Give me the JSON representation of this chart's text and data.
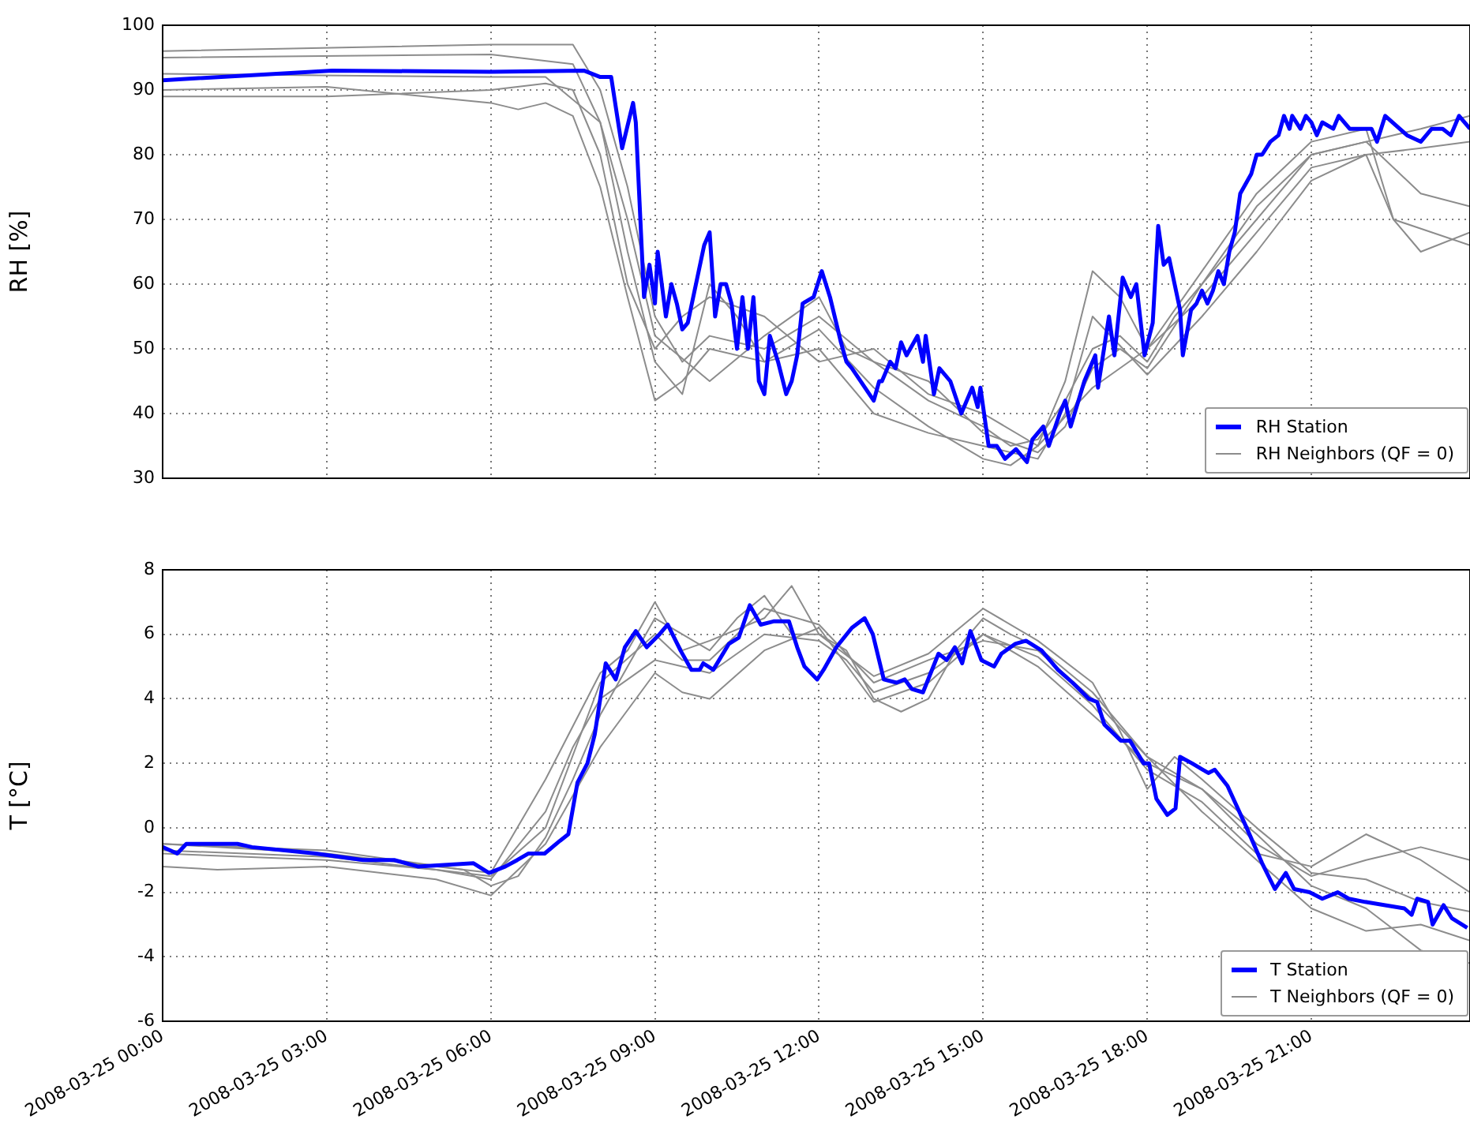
{
  "chart_data": [
    {
      "type": "line",
      "ylabel": "RH [%]",
      "xlim": [
        "2008-03-25T00:00",
        "2008-03-25T23:54"
      ],
      "ylim": [
        30,
        100
      ],
      "yticks": [
        30,
        40,
        50,
        60,
        70,
        80,
        90,
        100
      ],
      "xticks": [
        {
          "value": "2008-03-25T00:00",
          "label": null
        },
        {
          "value": "2008-03-25T03:00",
          "label": null
        },
        {
          "value": "2008-03-25T06:00",
          "label": null
        },
        {
          "value": "2008-03-25T09:00",
          "label": null
        },
        {
          "value": "2008-03-25T12:00",
          "label": null
        },
        {
          "value": "2008-03-25T15:00",
          "label": null
        },
        {
          "value": "2008-03-25T18:00",
          "label": null
        },
        {
          "value": "2008-03-25T21:00",
          "label": null
        }
      ],
      "tick_labels": "y",
      "grid": true,
      "legend": "bottom right",
      "series": [
        {
          "name": "RH Station",
          "color": "#0000ff",
          "x": [
            "2008-03-25T00:00",
            "2008-03-25T03:06",
            "2008-03-25T06:00",
            "2008-03-25T07:42",
            "2008-03-25T08:00",
            "2008-03-25T08:12",
            "2008-03-25T08:24",
            "2008-03-25T08:36",
            "2008-03-25T08:39",
            "2008-03-25T08:48",
            "2008-03-25T08:54",
            "2008-03-25T09:00",
            "2008-03-25T09:03",
            "2008-03-25T09:12",
            "2008-03-25T09:18",
            "2008-03-25T09:24",
            "2008-03-25T09:30",
            "2008-03-25T09:36",
            "2008-03-25T09:48",
            "2008-03-25T09:54",
            "2008-03-25T10:00",
            "2008-03-25T10:06",
            "2008-03-25T10:12",
            "2008-03-25T10:18",
            "2008-03-25T10:24",
            "2008-03-25T10:30",
            "2008-03-25T10:36",
            "2008-03-25T10:42",
            "2008-03-25T10:48",
            "2008-03-25T10:54",
            "2008-03-25T11:00",
            "2008-03-25T11:06",
            "2008-03-25T11:15",
            "2008-03-25T11:24",
            "2008-03-25T11:30",
            "2008-03-25T11:36",
            "2008-03-25T11:42",
            "2008-03-25T11:54",
            "2008-03-25T12:03",
            "2008-03-25T12:12",
            "2008-03-25T12:24",
            "2008-03-25T12:30",
            "2008-03-25T12:36",
            "2008-03-25T13:00",
            "2008-03-25T13:06",
            "2008-03-25T13:09",
            "2008-03-25T13:18",
            "2008-03-25T13:24",
            "2008-03-25T13:30",
            "2008-03-25T13:36",
            "2008-03-25T13:48",
            "2008-03-25T13:54",
            "2008-03-25T13:57",
            "2008-03-25T14:06",
            "2008-03-25T14:12",
            "2008-03-25T14:24",
            "2008-03-25T14:36",
            "2008-03-25T14:48",
            "2008-03-25T14:54",
            "2008-03-25T14:57",
            "2008-03-25T15:06",
            "2008-03-25T15:15",
            "2008-03-25T15:24",
            "2008-03-25T15:36",
            "2008-03-25T15:48",
            "2008-03-25T15:54",
            "2008-03-25T16:06",
            "2008-03-25T16:12",
            "2008-03-25T16:24",
            "2008-03-25T16:30",
            "2008-03-25T16:36",
            "2008-03-25T16:51",
            "2008-03-25T17:03",
            "2008-03-25T17:06",
            "2008-03-25T17:18",
            "2008-03-25T17:24",
            "2008-03-25T17:33",
            "2008-03-25T17:42",
            "2008-03-25T17:48",
            "2008-03-25T17:57",
            "2008-03-25T18:06",
            "2008-03-25T18:12",
            "2008-03-25T18:18",
            "2008-03-25T18:24",
            "2008-03-25T18:36",
            "2008-03-25T18:39",
            "2008-03-25T18:48",
            "2008-03-25T18:54",
            "2008-03-25T19:00",
            "2008-03-25T19:06",
            "2008-03-25T19:12",
            "2008-03-25T19:18",
            "2008-03-25T19:24",
            "2008-03-25T19:30",
            "2008-03-25T19:36",
            "2008-03-25T19:42",
            "2008-03-25T19:54",
            "2008-03-25T20:00",
            "2008-03-25T20:06",
            "2008-03-25T20:15",
            "2008-03-25T20:24",
            "2008-03-25T20:30",
            "2008-03-25T20:36",
            "2008-03-25T20:39",
            "2008-03-25T20:48",
            "2008-03-25T20:54",
            "2008-03-25T21:00",
            "2008-03-25T21:06",
            "2008-03-25T21:12",
            "2008-03-25T21:24",
            "2008-03-25T21:30",
            "2008-03-25T21:42",
            "2008-03-25T22:06",
            "2008-03-25T22:12",
            "2008-03-25T22:21",
            "2008-03-25T22:45",
            "2008-03-25T23:00",
            "2008-03-25T23:12",
            "2008-03-25T23:24",
            "2008-03-25T23:33",
            "2008-03-25T23:42",
            "2008-03-25T23:54"
          ],
          "values": [
            91.5,
            93,
            92.8,
            93,
            92,
            92,
            81,
            88,
            85,
            58,
            63,
            57,
            65,
            55,
            60,
            57,
            53,
            54,
            62,
            66,
            68,
            55,
            60,
            60,
            57,
            50,
            58,
            50,
            58,
            45,
            43,
            52,
            48,
            43,
            45,
            49,
            57,
            58,
            62,
            58,
            51,
            48,
            47,
            42,
            45,
            45,
            48,
            47,
            51,
            49,
            52,
            48,
            52,
            43,
            47,
            45,
            40,
            44,
            41,
            44,
            35,
            35,
            33,
            34.5,
            32.5,
            36,
            38,
            35,
            40,
            42,
            38,
            45,
            49,
            44,
            55,
            49,
            61,
            58,
            60,
            49,
            54,
            69,
            63,
            64,
            56,
            49,
            56,
            57,
            59,
            57,
            59,
            62,
            60,
            65,
            68,
            74,
            77,
            80,
            80,
            82,
            83,
            86,
            84,
            86,
            84,
            86,
            85,
            83,
            85,
            84,
            86,
            84,
            84,
            82,
            86,
            83,
            82,
            84,
            84,
            83,
            86,
            84
          ]
        },
        {
          "name": "RH Neighbors (QF = 0)",
          "color": "#8c8c8c",
          "x": [
            "2008-03-25T00:00",
            "2008-03-25T06:00",
            "2008-03-25T07:30",
            "2008-03-25T08:00",
            "2008-03-25T08:30",
            "2008-03-25T09:00",
            "2008-03-25T09:30",
            "2008-03-25T10:00",
            "2008-03-25T11:00",
            "2008-03-25T12:00",
            "2008-03-25T13:00",
            "2008-03-25T14:00",
            "2008-03-25T15:00",
            "2008-03-25T15:30",
            "2008-03-25T16:00",
            "2008-03-25T16:30",
            "2008-03-25T17:00",
            "2008-03-25T17:30",
            "2008-03-25T18:00",
            "2008-03-25T18:30",
            "2008-03-25T19:00",
            "2008-03-25T20:00",
            "2008-03-25T21:00",
            "2008-03-25T22:00",
            "2008-03-25T23:00",
            "2008-03-25T23:54"
          ],
          "values": [
            96,
            97,
            97,
            90,
            75,
            55,
            48,
            52,
            50,
            55,
            48,
            42,
            38,
            35,
            36,
            42,
            50,
            52,
            48,
            55,
            60,
            70,
            80,
            82,
            84,
            86
          ]
        },
        {
          "color": "#8c8c8c",
          "x": [
            "2008-03-25T00:00",
            "2008-03-25T06:00",
            "2008-03-25T07:30",
            "2008-03-25T08:00",
            "2008-03-25T08:30",
            "2008-03-25T09:00",
            "2008-03-25T09:30",
            "2008-03-25T10:00",
            "2008-03-25T10:30",
            "2008-03-25T11:00",
            "2008-03-25T12:00",
            "2008-03-25T13:00",
            "2008-03-25T14:00",
            "2008-03-25T15:00",
            "2008-03-25T15:30",
            "2008-03-25T16:00",
            "2008-03-25T16:30",
            "2008-03-25T17:00",
            "2008-03-25T17:30",
            "2008-03-25T18:00",
            "2008-03-25T19:00",
            "2008-03-25T20:00",
            "2008-03-25T21:00",
            "2008-03-25T22:00",
            "2008-03-25T22:30",
            "2008-03-25T23:00",
            "2008-03-25T23:54"
          ],
          "values": [
            95,
            95.5,
            94,
            85,
            65,
            48,
            43,
            60,
            55,
            48,
            53,
            44,
            38,
            33,
            32,
            35,
            45,
            62,
            58,
            50,
            58,
            68,
            78,
            80,
            70,
            65,
            68
          ]
        },
        {
          "color": "#8c8c8c",
          "x": [
            "2008-03-25T00:00",
            "2008-03-25T06:00",
            "2008-03-25T07:00",
            "2008-03-25T08:00",
            "2008-03-25T08:30",
            "2008-03-25T09:00",
            "2008-03-25T10:00",
            "2008-03-25T11:00",
            "2008-03-25T12:00",
            "2008-03-25T12:30",
            "2008-03-25T13:00",
            "2008-03-25T14:00",
            "2008-03-25T15:00",
            "2008-03-25T16:00",
            "2008-03-25T16:30",
            "2008-03-25T17:00",
            "2008-03-25T17:30",
            "2008-03-25T18:00",
            "2008-03-25T19:00",
            "2008-03-25T20:00",
            "2008-03-25T21:00",
            "2008-03-25T22:00",
            "2008-03-25T23:00",
            "2008-03-25T23:54"
          ],
          "values": [
            92.5,
            92,
            92,
            85,
            70,
            52,
            45,
            52,
            58,
            50,
            48,
            45,
            37,
            34,
            38,
            47,
            50,
            47,
            60,
            72,
            80,
            82,
            74,
            72
          ]
        },
        {
          "color": "#8c8c8c",
          "x": [
            "2008-03-25T00:00",
            "2008-03-25T03:00",
            "2008-03-25T06:00",
            "2008-03-25T06:30",
            "2008-03-25T07:00",
            "2008-03-25T07:30",
            "2008-03-25T08:00",
            "2008-03-25T08:30",
            "2008-03-25T09:00",
            "2008-03-25T09:30",
            "2008-03-25T10:00",
            "2008-03-25T11:00",
            "2008-03-25T12:00",
            "2008-03-25T13:00",
            "2008-03-25T14:00",
            "2008-03-25T15:00",
            "2008-03-25T16:00",
            "2008-03-25T16:30",
            "2008-03-25T17:00",
            "2008-03-25T18:00",
            "2008-03-25T19:00",
            "2008-03-25T20:00",
            "2008-03-25T21:00",
            "2008-03-25T22:00",
            "2008-03-25T23:00",
            "2008-03-25T23:54"
          ],
          "values": [
            90,
            90.5,
            88,
            87,
            88,
            86,
            75,
            58,
            42,
            45,
            50,
            48,
            50,
            40,
            37,
            35,
            33,
            40,
            55,
            46,
            55,
            65,
            76,
            80,
            81,
            82
          ]
        },
        {
          "color": "#8c8c8c",
          "x": [
            "2008-03-25T00:00",
            "2008-03-25T03:00",
            "2008-03-25T06:00",
            "2008-03-25T07:00",
            "2008-03-25T07:30",
            "2008-03-25T08:00",
            "2008-03-25T08:30",
            "2008-03-25T09:00",
            "2008-03-25T09:30",
            "2008-03-25T10:00",
            "2008-03-25T11:00",
            "2008-03-25T12:00",
            "2008-03-25T13:00",
            "2008-03-25T14:00",
            "2008-03-25T15:00",
            "2008-03-25T16:00",
            "2008-03-25T17:00",
            "2008-03-25T18:00",
            "2008-03-25T19:00",
            "2008-03-25T20:00",
            "2008-03-25T21:00",
            "2008-03-25T22:00",
            "2008-03-25T22:30",
            "2008-03-25T23:54"
          ],
          "values": [
            89,
            89,
            90,
            91,
            90,
            80,
            60,
            50,
            55,
            58,
            55,
            48,
            50,
            43,
            40,
            35,
            44,
            50,
            62,
            74,
            82,
            84,
            70,
            66
          ]
        }
      ]
    },
    {
      "type": "line",
      "ylabel": "T [°C]",
      "xlim": [
        "2008-03-25T00:00",
        "2008-03-25T23:54"
      ],
      "ylim": [
        -6,
        8
      ],
      "yticks": [
        -6,
        -4,
        -2,
        0,
        2,
        4,
        6,
        8
      ],
      "xticks": [
        {
          "value": "2008-03-25T00:00",
          "label": "2008-03-25 00:00"
        },
        {
          "value": "2008-03-25T03:00",
          "label": "2008-03-25 03:00"
        },
        {
          "value": "2008-03-25T06:00",
          "label": "2008-03-25 06:00"
        },
        {
          "value": "2008-03-25T09:00",
          "label": "2008-03-25 09:00"
        },
        {
          "value": "2008-03-25T12:00",
          "label": "2008-03-25 12:00"
        },
        {
          "value": "2008-03-25T15:00",
          "label": "2008-03-25 15:00"
        },
        {
          "value": "2008-03-25T18:00",
          "label": "2008-03-25 18:00"
        },
        {
          "value": "2008-03-25T21:00",
          "label": "2008-03-25 21:00"
        }
      ],
      "grid": true,
      "legend": "bottom right",
      "series": [
        {
          "name": "T Station",
          "color": "#0000ff",
          "x": [
            "2008-03-25T00:00",
            "2008-03-25T00:16",
            "2008-03-25T00:26",
            "2008-03-25T01:22",
            "2008-03-25T01:38",
            "2008-03-25T02:48",
            "2008-03-25T03:40",
            "2008-03-25T04:14",
            "2008-03-25T04:40",
            "2008-03-25T05:41",
            "2008-03-25T05:58",
            "2008-03-25T06:16",
            "2008-03-25T06:29",
            "2008-03-25T06:41",
            "2008-03-25T06:59",
            "2008-03-25T07:16",
            "2008-03-25T07:25",
            "2008-03-25T07:35",
            "2008-03-25T07:46",
            "2008-03-25T07:54",
            "2008-03-25T08:06",
            "2008-03-25T08:17",
            "2008-03-25T08:27",
            "2008-03-25T08:39",
            "2008-03-25T08:51",
            "2008-03-25T09:05",
            "2008-03-25T09:14",
            "2008-03-25T09:28",
            "2008-03-25T09:40",
            "2008-03-25T09:49",
            "2008-03-25T09:53",
            "2008-03-25T10:04",
            "2008-03-25T10:21",
            "2008-03-25T10:32",
            "2008-03-25T10:44",
            "2008-03-25T10:56",
            "2008-03-25T11:10",
            "2008-03-25T11:27",
            "2008-03-25T11:36",
            "2008-03-25T11:44",
            "2008-03-25T11:58",
            "2008-03-25T12:05",
            "2008-03-25T12:19",
            "2008-03-25T12:36",
            "2008-03-25T12:50",
            "2008-03-25T12:59",
            "2008-03-25T13:11",
            "2008-03-25T13:25",
            "2008-03-25T13:34",
            "2008-03-25T13:42",
            "2008-03-25T13:54",
            "2008-03-25T14:11",
            "2008-03-25T14:20",
            "2008-03-25T14:29",
            "2008-03-25T14:37",
            "2008-03-25T14:46",
            "2008-03-25T14:58",
            "2008-03-25T15:12",
            "2008-03-25T15:20",
            "2008-03-25T15:35",
            "2008-03-25T15:47",
            "2008-03-25T16:04",
            "2008-03-25T16:22",
            "2008-03-25T16:38",
            "2008-03-25T16:56",
            "2008-03-25T17:05",
            "2008-03-25T17:13",
            "2008-03-25T17:31",
            "2008-03-25T17:41",
            "2008-03-25T17:56",
            "2008-03-25T18:02",
            "2008-03-25T18:10",
            "2008-03-25T18:22",
            "2008-03-25T18:31",
            "2008-03-25T18:36",
            "2008-03-25T18:49",
            "2008-03-25T19:01",
            "2008-03-25T19:07",
            "2008-03-25T19:14",
            "2008-03-25T19:28",
            "2008-03-25T19:49",
            "2008-03-25T20:06",
            "2008-03-25T20:20",
            "2008-03-25T20:32",
            "2008-03-25T20:41",
            "2008-03-25T20:58",
            "2008-03-25T21:12",
            "2008-03-25T21:29",
            "2008-03-25T21:41",
            "2008-03-25T21:59",
            "2008-03-25T22:21",
            "2008-03-25T22:42",
            "2008-03-25T22:50",
            "2008-03-25T22:56",
            "2008-03-25T23:08",
            "2008-03-25T23:13",
            "2008-03-25T23:25",
            "2008-03-25T23:34",
            "2008-03-25T23:51"
          ],
          "values": [
            -0.6,
            -0.8,
            -0.5,
            -0.5,
            -0.6,
            -0.8,
            -1.0,
            -1.0,
            -1.2,
            -1.1,
            -1.4,
            -1.2,
            -1.0,
            -0.8,
            -0.8,
            -0.4,
            -0.2,
            1.4,
            2.0,
            2.9,
            5.1,
            4.6,
            5.6,
            6.1,
            5.6,
            6.0,
            6.3,
            5.5,
            4.9,
            4.9,
            5.1,
            4.9,
            5.7,
            5.9,
            6.9,
            6.3,
            6.4,
            6.4,
            5.6,
            5.0,
            4.6,
            4.9,
            5.6,
            6.2,
            6.5,
            6.0,
            4.6,
            4.5,
            4.6,
            4.3,
            4.2,
            5.4,
            5.2,
            5.6,
            5.1,
            6.1,
            5.2,
            5.0,
            5.4,
            5.7,
            5.8,
            5.5,
            4.9,
            4.5,
            4.0,
            3.9,
            3.2,
            2.7,
            2.7,
            2.0,
            2.0,
            0.9,
            0.4,
            0.6,
            2.2,
            2.0,
            1.8,
            1.7,
            1.8,
            1.3,
            0.0,
            -1.1,
            -1.9,
            -1.4,
            -1.9,
            -2.0,
            -2.2,
            -2.0,
            -2.2,
            -2.3,
            -2.4,
            -2.5,
            -2.7,
            -2.2,
            -2.3,
            -3.0,
            -2.4,
            -2.8,
            -3.1
          ]
        },
        {
          "name": "T Neighbors (QF = 0)",
          "color": "#8c8c8c",
          "x": [
            "2008-03-25T00:00",
            "2008-03-25T03:00",
            "2008-03-25T05:30",
            "2008-03-25T06:00",
            "2008-03-25T06:30",
            "2008-03-25T07:00",
            "2008-03-25T07:30",
            "2008-03-25T08:00",
            "2008-03-25T08:30",
            "2008-03-25T09:00",
            "2008-03-25T09:30",
            "2008-03-25T10:00",
            "2008-03-25T10:30",
            "2008-03-25T11:00",
            "2008-03-25T11:30",
            "2008-03-25T12:00",
            "2008-03-25T12:30",
            "2008-03-25T13:00",
            "2008-03-25T13:30",
            "2008-03-25T14:00",
            "2008-03-25T14:30",
            "2008-03-25T15:00",
            "2008-03-25T15:30",
            "2008-03-25T16:00",
            "2008-03-25T17:00",
            "2008-03-25T18:00",
            "2008-03-25T19:00",
            "2008-03-25T20:00",
            "2008-03-25T21:00",
            "2008-03-25T22:00",
            "2008-03-25T23:00",
            "2008-03-25T23:54"
          ],
          "values": [
            -0.5,
            -0.7,
            -1.3,
            -1.8,
            -1.5,
            -0.3,
            1.5,
            3.5,
            5,
            6.5,
            6,
            5.5,
            6.5,
            7.2,
            6,
            6,
            5.5,
            4,
            3.6,
            4,
            5.5,
            6.5,
            6,
            5.6,
            4.2,
            2.2,
            1.2,
            -0.5,
            -1.5,
            -1,
            -0.6,
            -1
          ]
        },
        {
          "color": "#8c8c8c",
          "x": [
            "2008-03-25T00:00",
            "2008-03-25T03:00",
            "2008-03-25T05:00",
            "2008-03-25T06:00",
            "2008-03-25T07:00",
            "2008-03-25T07:30",
            "2008-03-25T08:00",
            "2008-03-25T09:00",
            "2008-03-25T09:30",
            "2008-03-25T10:00",
            "2008-03-25T11:00",
            "2008-03-25T12:00",
            "2008-03-25T12:30",
            "2008-03-25T13:00",
            "2008-03-25T14:00",
            "2008-03-25T15:00",
            "2008-03-25T16:00",
            "2008-03-25T17:00",
            "2008-03-25T18:00",
            "2008-03-25T19:00",
            "2008-03-25T20:00",
            "2008-03-25T21:00",
            "2008-03-25T22:00",
            "2008-03-25T23:00",
            "2008-03-25T23:54"
          ],
          "values": [
            -0.8,
            -1,
            -1.3,
            -1.6,
            0.5,
            2.5,
            4,
            5.2,
            5,
            4.8,
            6,
            5.8,
            5.2,
            4.2,
            4.8,
            6,
            5,
            3.5,
            2,
            1.2,
            -0.2,
            -1.8,
            -2.5,
            -3.8,
            -4.2
          ]
        },
        {
          "color": "#8c8c8c",
          "x": [
            "2008-03-25T00:00",
            "2008-03-25T01:00",
            "2008-03-25T03:00",
            "2008-03-25T05:00",
            "2008-03-25T06:00",
            "2008-03-25T07:00",
            "2008-03-25T08:00",
            "2008-03-25T09:00",
            "2008-03-25T09:30",
            "2008-03-25T10:00",
            "2008-03-25T11:00",
            "2008-03-25T12:00",
            "2008-03-25T13:00",
            "2008-03-25T14:00",
            "2008-03-25T15:00",
            "2008-03-25T16:00",
            "2008-03-25T17:00",
            "2008-03-25T18:00",
            "2008-03-25T19:00",
            "2008-03-25T20:00",
            "2008-03-25T21:00",
            "2008-03-25T22:00",
            "2008-03-25T23:00",
            "2008-03-25T23:54"
          ],
          "values": [
            -1.2,
            -1.3,
            -1.2,
            -1.6,
            -2.1,
            -0.5,
            2.5,
            4.8,
            4.2,
            4,
            5.5,
            6.2,
            3.9,
            4.5,
            6,
            5.3,
            3.8,
            1.8,
            0.8,
            -0.8,
            -1.2,
            -0.2,
            -1,
            -2
          ]
        },
        {
          "color": "#8c8c8c",
          "x": [
            "2008-03-25T00:00",
            "2008-03-25T03:00",
            "2008-03-25T06:00",
            "2008-03-25T07:00",
            "2008-03-25T08:00",
            "2008-03-25T09:00",
            "2008-03-25T09:30",
            "2008-03-25T10:00",
            "2008-03-25T10:30",
            "2008-03-25T11:00",
            "2008-03-25T12:00",
            "2008-03-25T13:00",
            "2008-03-25T14:00",
            "2008-03-25T15:00",
            "2008-03-25T16:00",
            "2008-03-25T17:00",
            "2008-03-25T18:00",
            "2008-03-25T19:00",
            "2008-03-25T20:00",
            "2008-03-25T21:00",
            "2008-03-25T22:00",
            "2008-03-25T23:00",
            "2008-03-25T23:54"
          ],
          "values": [
            -0.7,
            -0.9,
            -1.5,
            0,
            4.5,
            6,
            5.2,
            5.2,
            6,
            6.8,
            6.3,
            4.5,
            5.2,
            5.8,
            5.5,
            4,
            2.2,
            0.5,
            -1,
            -2.5,
            -3.2,
            -3,
            -3.5
          ]
        },
        {
          "color": "#8c8c8c",
          "x": [
            "2008-03-25T00:00",
            "2008-03-25T03:00",
            "2008-03-25T06:00",
            "2008-03-25T07:00",
            "2008-03-25T08:00",
            "2008-03-25T08:30",
            "2008-03-25T09:00",
            "2008-03-25T09:30",
            "2008-03-25T10:00",
            "2008-03-25T11:00",
            "2008-03-25T11:30",
            "2008-03-25T12:00",
            "2008-03-25T13:00",
            "2008-03-25T14:00",
            "2008-03-25T15:00",
            "2008-03-25T16:00",
            "2008-03-25T17:00",
            "2008-03-25T17:30",
            "2008-03-25T18:00",
            "2008-03-25T18:30",
            "2008-03-25T19:00",
            "2008-03-25T20:00",
            "2008-03-25T21:00",
            "2008-03-25T22:00",
            "2008-03-25T23:00",
            "2008-03-25T23:54"
          ],
          "values": [
            -0.5,
            -0.8,
            -1.4,
            1.5,
            4.8,
            5.5,
            7,
            5.5,
            5.8,
            6.5,
            7.5,
            6,
            4.7,
            5.4,
            6.8,
            5.8,
            4.5,
            3,
            1.2,
            2.2,
            1.5,
            0,
            -1.4,
            -1.6,
            -2.3,
            -2.6
          ]
        }
      ]
    }
  ]
}
